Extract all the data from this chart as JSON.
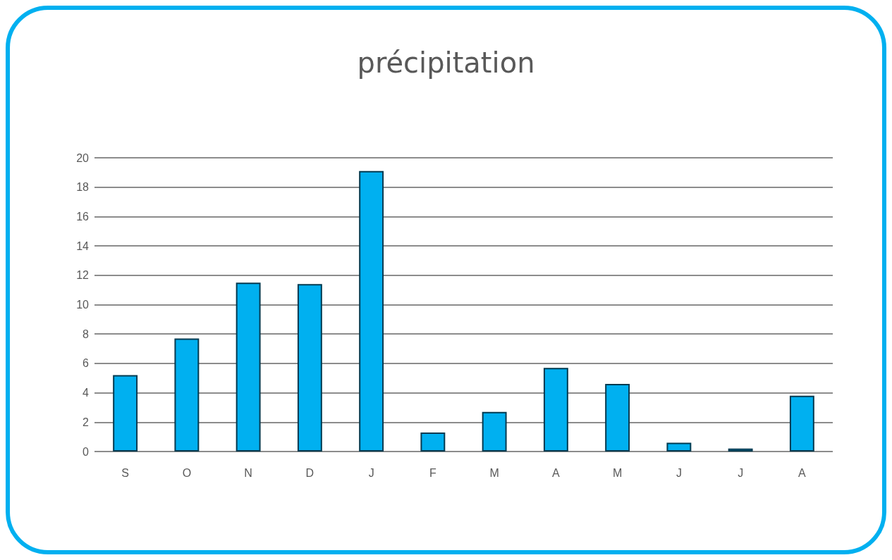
{
  "chart_data": {
    "type": "bar",
    "title": "précipitation",
    "categories": [
      "S",
      "O",
      "N",
      "D",
      "J",
      "F",
      "M",
      "A",
      "M",
      "J",
      "J",
      "A"
    ],
    "values": [
      5.2,
      7.7,
      11.5,
      11.4,
      19.1,
      1.3,
      2.7,
      5.7,
      4.6,
      0.6,
      0.2,
      3.8
    ],
    "color": "#00b0f0",
    "ylim": [
      0,
      20
    ],
    "yticks": [
      0,
      2,
      4,
      6,
      8,
      10,
      12,
      14,
      16,
      18,
      20
    ],
    "grid": "y"
  }
}
